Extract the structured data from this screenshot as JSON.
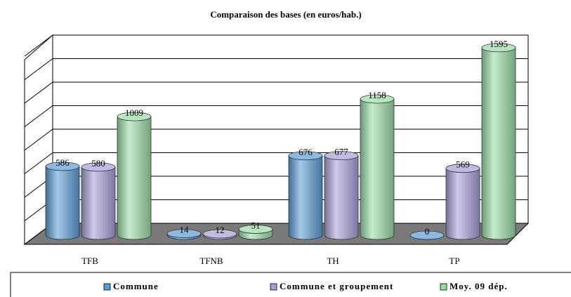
{
  "chart_data": {
    "type": "bar",
    "title": "Comparaison des bases (en euros/hab.)",
    "categories": [
      "TFB",
      "TFNB",
      "TH",
      "TP"
    ],
    "series": [
      {
        "name": "Commune",
        "color": "#5b9bd5",
        "values": [
          586,
          14,
          676,
          0
        ]
      },
      {
        "name": "Commune et groupement",
        "color": "#a49fd8",
        "values": [
          580,
          12,
          677,
          569
        ]
      },
      {
        "name": "Moy. 09 dép.",
        "color": "#98dba4",
        "values": [
          1009,
          51,
          1158,
          1595
        ]
      }
    ],
    "ylim": [
      0,
      1600
    ],
    "yticks": [
      0,
      200,
      400,
      600,
      800,
      1000,
      1200,
      1400,
      1600
    ],
    "grid": true
  }
}
